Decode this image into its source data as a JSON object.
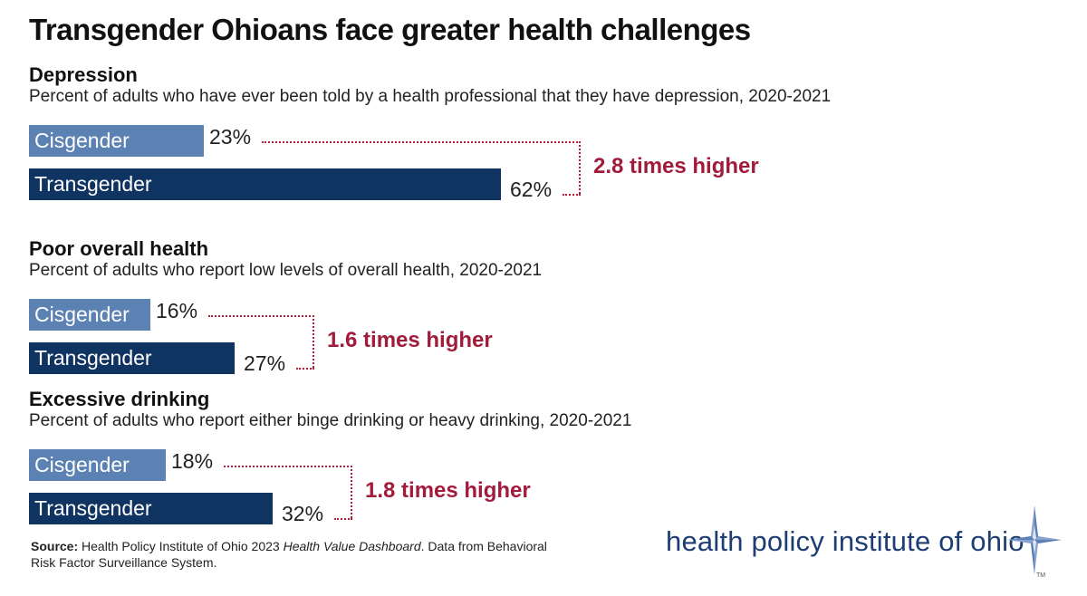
{
  "title": "Transgender Ohioans face greater health challenges",
  "chart_data": [
    {
      "type": "bar",
      "title": "Depression",
      "subtitle": "Percent of adults who have ever been told by a health professional that they have depression, 2020-2021",
      "categories": [
        "Cisgender",
        "Transgender"
      ],
      "values": [
        23,
        62
      ],
      "value_labels": [
        "23%",
        "62%"
      ],
      "ratio_label": "2.8 times higher"
    },
    {
      "type": "bar",
      "title": "Poor overall health",
      "subtitle": "Percent of adults who report low levels of overall health, 2020-2021",
      "categories": [
        "Cisgender",
        "Transgender"
      ],
      "values": [
        16,
        27
      ],
      "value_labels": [
        "16%",
        "27%"
      ],
      "ratio_label": "1.6 times higher"
    },
    {
      "type": "bar",
      "title": "Excessive drinking",
      "subtitle": "Percent of adults who report either binge drinking or heavy drinking, 2020-2021",
      "categories": [
        "Cisgender",
        "Transgender"
      ],
      "values": [
        18,
        32
      ],
      "value_labels": [
        "18%",
        "32%"
      ],
      "ratio_label": "1.8 times higher"
    }
  ],
  "colors": {
    "cisgender": "#5b82b3",
    "transgender": "#0f3461",
    "accent": "#a01c3a",
    "brand": "#1d3d73"
  },
  "source": {
    "label": "Source:",
    "text_before": " Health Policy Institute of Ohio 2023 ",
    "italic": "Health Value Dashboard",
    "text_after": ". Data from Behavioral Risk Factor Surveillance System."
  },
  "brand": {
    "name": "health policy institute of ohio",
    "trademark": "TM",
    "logo_icon": "compass-star-icon"
  }
}
